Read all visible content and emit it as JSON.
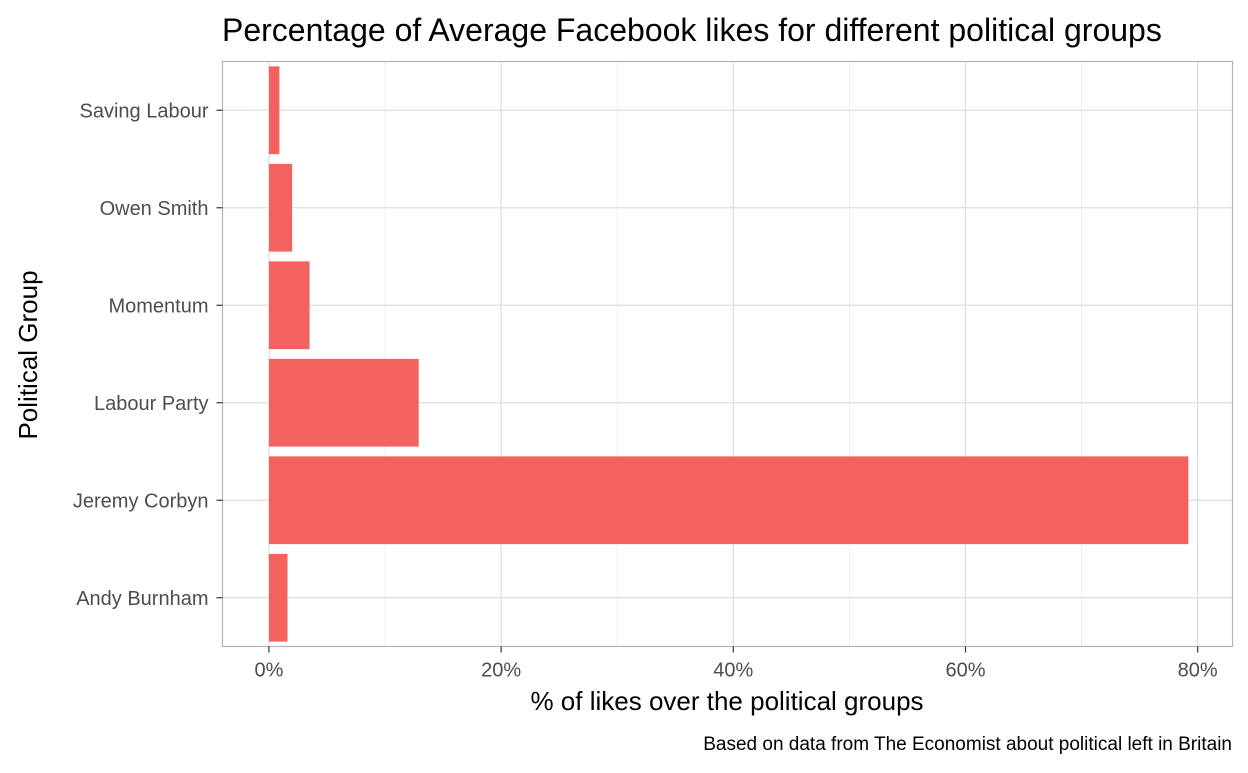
{
  "chart_data": {
    "type": "bar",
    "orientation": "horizontal",
    "title": "Percentage of Average Facebook likes for different political groups",
    "caption": "Based on data from The Economist about political left in Britain",
    "xlabel": "% of likes over the political groups",
    "ylabel": "Political Group",
    "categories": [
      "Saving Labour",
      "Owen Smith",
      "Momentum",
      "Labour Party",
      "Jeremy Corbyn",
      "Andy Burnham"
    ],
    "values": [
      0.9,
      2.0,
      3.5,
      12.9,
      79.2,
      1.6
    ],
    "xlim": [
      -4,
      83
    ],
    "x_ticks": [
      0,
      20,
      40,
      60,
      80
    ],
    "x_tick_labels": [
      "0%",
      "20%",
      "40%",
      "60%",
      "80%"
    ],
    "bar_color": "#F26360",
    "grid": true,
    "legend": "none"
  }
}
